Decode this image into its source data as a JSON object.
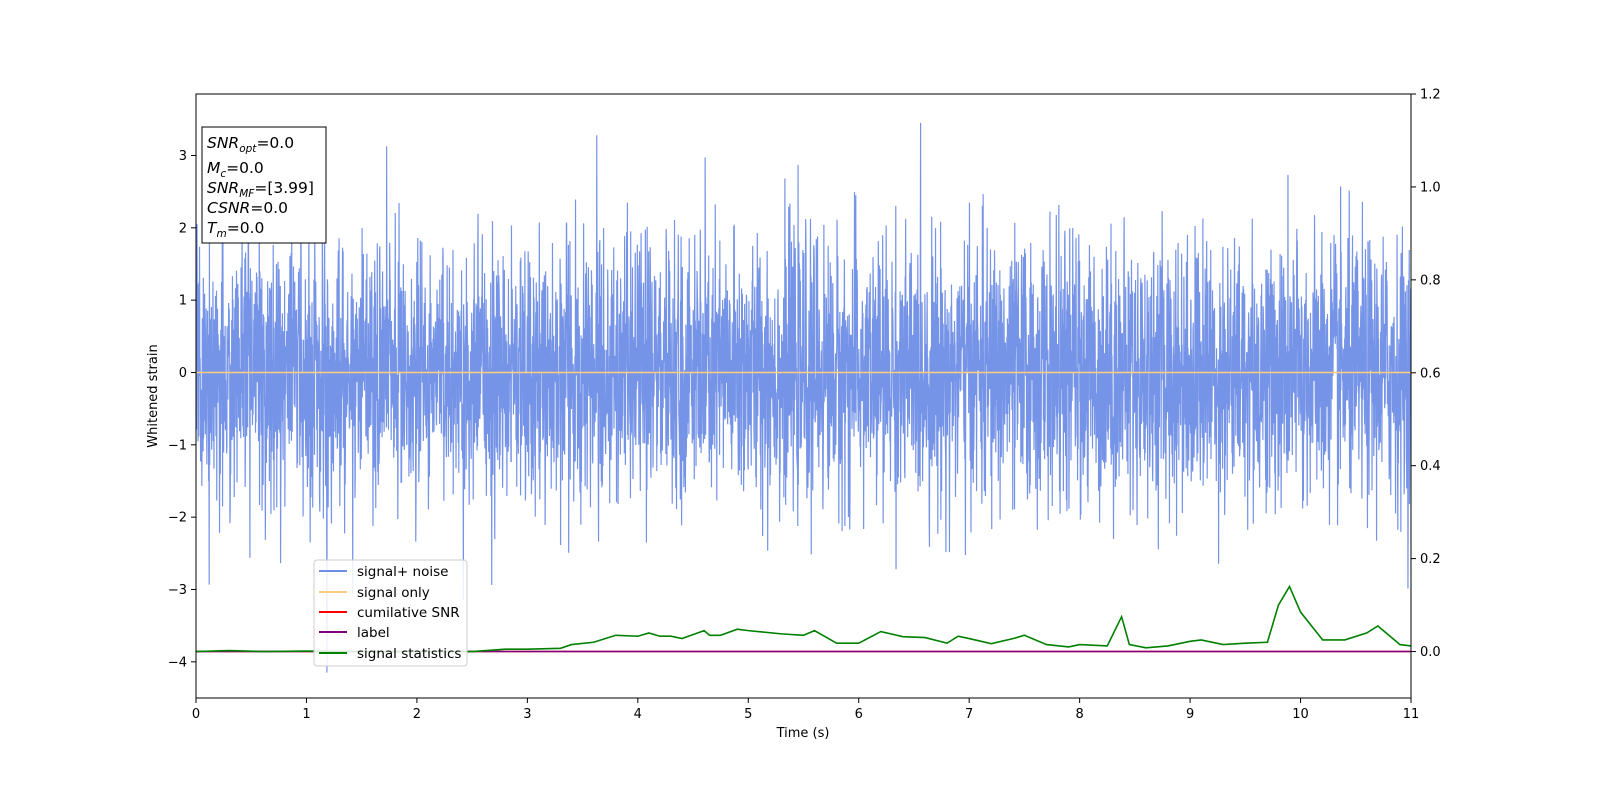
{
  "chart_data": {
    "type": "line",
    "xlabel": "Time (s)",
    "ylabel": "Whitened strain",
    "xlim": [
      0,
      11
    ],
    "ylim": [
      -4.5,
      3.85
    ],
    "y2lim": [
      -0.1,
      1.2
    ],
    "xticks": [
      "0",
      "1",
      "2",
      "3",
      "4",
      "5",
      "6",
      "7",
      "8",
      "9",
      "10",
      "11"
    ],
    "yticks": [
      "−4",
      "−3",
      "−2",
      "−1",
      "0",
      "1",
      "2",
      "3"
    ],
    "y2ticks": [
      "0.0",
      "0.2",
      "0.4",
      "0.6",
      "0.8",
      "1.0",
      "1.2"
    ],
    "grid": false,
    "legend_position": "lower-left",
    "annotation": [
      {
        "base": "SNR",
        "sub": "opt",
        "value": "=0.0"
      },
      {
        "base": "M",
        "sub": "c",
        "value": "=0.0"
      },
      {
        "base": "SNR",
        "sub": "MF",
        "value": "=[3.99]"
      },
      {
        "base": "CSNR",
        "sub": "",
        "value": "=0.0"
      },
      {
        "base": "T",
        "sub": "m",
        "value": "=0.0"
      }
    ],
    "series": [
      {
        "name": "signal+ noise",
        "axis": "left",
        "color": "#6f8ee6",
        "description": "approximately gaussian whitened noise, std ≈ 0.9, range −4.2 to 3.45"
      },
      {
        "name": "signal only",
        "axis": "left",
        "color": "#ffcc80",
        "values_constant": 0.0
      },
      {
        "name": "cumilative SNR",
        "axis": "right",
        "color": "#ff0000",
        "values_constant": 0.0
      },
      {
        "name": "label",
        "axis": "right",
        "color": "#800080",
        "values_constant": 0.0
      },
      {
        "name": "signal statistics",
        "axis": "right",
        "color": "#008000",
        "x": [
          0,
          0.3,
          0.6,
          1.0,
          1.5,
          2.0,
          2.5,
          2.8,
          3.0,
          3.3,
          3.4,
          3.6,
          3.8,
          4.0,
          4.1,
          4.2,
          4.3,
          4.4,
          4.6,
          4.65,
          4.75,
          4.9,
          5.0,
          5.3,
          5.5,
          5.6,
          5.8,
          6.0,
          6.2,
          6.4,
          6.6,
          6.8,
          6.9,
          7.0,
          7.2,
          7.4,
          7.5,
          7.7,
          7.9,
          8.0,
          8.25,
          8.38,
          8.45,
          8.6,
          8.8,
          9.0,
          9.1,
          9.3,
          9.5,
          9.7,
          9.8,
          9.9,
          10.0,
          10.2,
          10.4,
          10.6,
          10.7,
          10.8,
          10.9,
          11.0
        ],
        "values": [
          0.0,
          0.002,
          0.0,
          0.001,
          0.0,
          0.0,
          0.0,
          0.005,
          0.005,
          0.007,
          0.015,
          0.02,
          0.035,
          0.033,
          0.04,
          0.033,
          0.033,
          0.028,
          0.045,
          0.035,
          0.035,
          0.048,
          0.045,
          0.038,
          0.035,
          0.045,
          0.018,
          0.018,
          0.043,
          0.032,
          0.03,
          0.018,
          0.033,
          0.028,
          0.017,
          0.028,
          0.035,
          0.015,
          0.01,
          0.015,
          0.012,
          0.075,
          0.015,
          0.008,
          0.012,
          0.022,
          0.025,
          0.015,
          0.018,
          0.02,
          0.1,
          0.14,
          0.085,
          0.025,
          0.025,
          0.04,
          0.055,
          0.035,
          0.015,
          0.012
        ]
      }
    ]
  }
}
